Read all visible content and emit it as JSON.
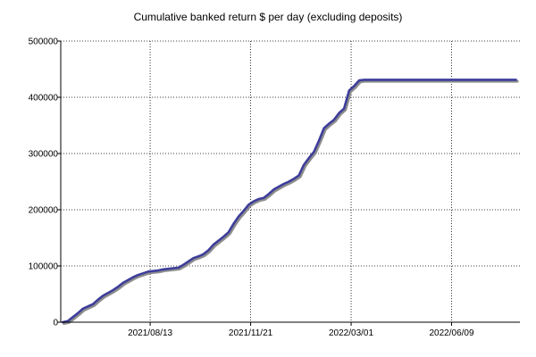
{
  "chart_data": {
    "type": "line",
    "title": "Cumulative banked return $ per day (excluding deposits)",
    "xlabel": "",
    "ylabel": "",
    "x_axis_type": "date",
    "xlim": [
      "2021-05-16",
      "2022-08-16"
    ],
    "ylim": [
      0,
      500000
    ],
    "y_ticks": [
      0,
      100000,
      200000,
      300000,
      400000,
      500000
    ],
    "y_tick_labels": [
      "0",
      "100000",
      "200000",
      "300000",
      "400000",
      "500000"
    ],
    "x_ticks": [
      "2021-08-13",
      "2021-11-21",
      "2022-03-01",
      "2022-06-09"
    ],
    "x_tick_labels": [
      "2021/08/13",
      "2021/11/21",
      "2022/03/01",
      "2022/06/09"
    ],
    "grid": true,
    "grid_style": "dotted",
    "legend": false,
    "line_color": "#3d3d9b",
    "shadow_color": "#8e8e8e",
    "series": [
      {
        "x": [
          "2021-05-18",
          "2021-05-23",
          "2021-05-28",
          "2021-06-02",
          "2021-06-07",
          "2021-06-12",
          "2021-06-17",
          "2021-06-22",
          "2021-06-27",
          "2021-07-02",
          "2021-07-07",
          "2021-07-12",
          "2021-07-17",
          "2021-07-22",
          "2021-07-27",
          "2021-08-01",
          "2021-08-06",
          "2021-08-11",
          "2021-08-16",
          "2021-08-21",
          "2021-08-26",
          "2021-08-31",
          "2021-09-05",
          "2021-09-10",
          "2021-09-15",
          "2021-09-20",
          "2021-09-25",
          "2021-09-30",
          "2021-10-05",
          "2021-10-10",
          "2021-10-15",
          "2021-10-20",
          "2021-10-25",
          "2021-10-30",
          "2021-11-04",
          "2021-11-09",
          "2021-11-14",
          "2021-11-19",
          "2021-11-24",
          "2021-11-29",
          "2021-12-04",
          "2021-12-09",
          "2021-12-14",
          "2021-12-19",
          "2021-12-24",
          "2021-12-29",
          "2022-01-03",
          "2022-01-08",
          "2022-01-13",
          "2022-01-18",
          "2022-01-23",
          "2022-01-28",
          "2022-02-02",
          "2022-02-07",
          "2022-02-12",
          "2022-02-17",
          "2022-02-22",
          "2022-02-27",
          "2022-03-04",
          "2022-03-09",
          "2022-03-14",
          "2022-03-19",
          "2022-03-24",
          "2022-03-29",
          "2022-04-03",
          "2022-04-08",
          "2022-04-13",
          "2022-04-18",
          "2022-04-23",
          "2022-05-03",
          "2022-05-15",
          "2022-06-01",
          "2022-06-20",
          "2022-07-10",
          "2022-07-30",
          "2022-08-12"
        ],
        "y": [
          0,
          2000,
          9000,
          16000,
          24000,
          28000,
          32000,
          40000,
          47000,
          52000,
          57000,
          63000,
          70000,
          75000,
          80000,
          84000,
          87000,
          90000,
          91000,
          92000,
          94000,
          95000,
          96000,
          97000,
          102000,
          108000,
          114000,
          117000,
          121000,
          128000,
          138000,
          145000,
          152000,
          160000,
          175000,
          188000,
          198000,
          209000,
          215000,
          219000,
          221000,
          228000,
          236000,
          241000,
          246000,
          250000,
          255000,
          261000,
          280000,
          292000,
          303000,
          323000,
          345000,
          353000,
          360000,
          372000,
          380000,
          412000,
          420000,
          430000,
          431000,
          431000,
          431000,
          431000,
          431000,
          431000,
          431000,
          431000,
          431000,
          431000,
          431000,
          431000,
          431000,
          431000,
          431000,
          431000
        ]
      }
    ]
  }
}
